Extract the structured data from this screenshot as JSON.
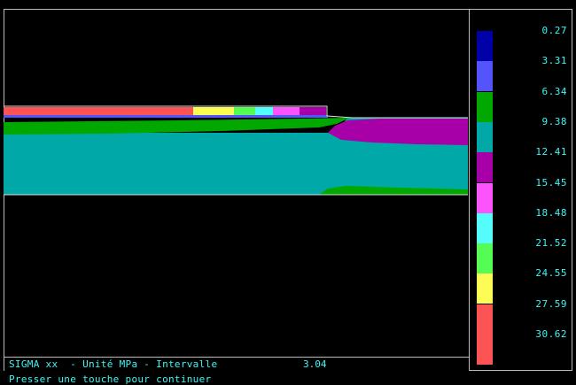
{
  "status_bar": {
    "text": "SIGMA xx  - Unité MPa - Intervalle",
    "interval_value": "3.04"
  },
  "prompt": {
    "text": "Presser une touche pour continuer"
  },
  "legend": {
    "entries": [
      {
        "label": "0.27",
        "color": "#0000a8"
      },
      {
        "label": "3.31",
        "color": "#5454fc"
      },
      {
        "label": "6.34",
        "color": "#00a800"
      },
      {
        "label": "9.38",
        "color": "#00a8a8"
      },
      {
        "label": "12.41",
        "color": "#a800a8"
      },
      {
        "label": "15.45",
        "color": "#fc54fc"
      },
      {
        "label": "18.48",
        "color": "#54fcfc"
      },
      {
        "label": "21.52",
        "color": "#54fc54"
      },
      {
        "label": "24.55",
        "color": "#fcfc54"
      },
      {
        "label": "27.59",
        "color": "#fc5454"
      },
      {
        "label": "30.62",
        "color": "#fc5454"
      }
    ]
  },
  "colors": {
    "background": "#000000",
    "text": "#3cf6f6",
    "frame": "#bbbbbb"
  }
}
